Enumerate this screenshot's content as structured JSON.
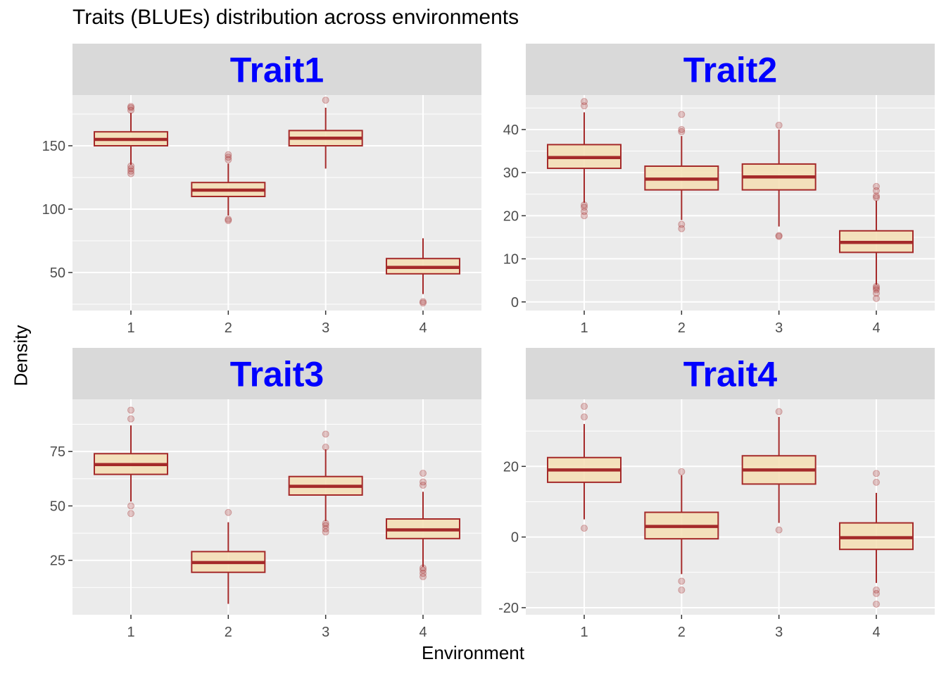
{
  "title": "Traits (BLUEs) distribution across environments",
  "xlabel": "Environment",
  "ylabel": "Density",
  "colors": {
    "panel_background": "#ebebeb",
    "strip_background": "#d9d9d9",
    "grid": "#ffffff",
    "strip_text": "#0000ff",
    "box_fill": "#f5deb3",
    "box_line": "#a52a2a",
    "tick_text": "#4d4d4d"
  },
  "chart_data": [
    {
      "type": "boxplot",
      "facet": "Trait1",
      "categories": [
        "1",
        "2",
        "3",
        "4"
      ],
      "ylim": [
        20,
        190
      ],
      "yticks": [
        50,
        100,
        150
      ],
      "boxes": [
        {
          "x": "1",
          "lower_whisker": 135,
          "q1": 150,
          "median": 155,
          "q3": 161,
          "upper_whisker": 176,
          "outliers": [
            128,
            130,
            132,
            134,
            178,
            180,
            181
          ]
        },
        {
          "x": "2",
          "lower_whisker": 95,
          "q1": 110,
          "median": 115,
          "q3": 121,
          "upper_whisker": 136,
          "outliers": [
            91,
            92,
            139,
            141,
            143
          ]
        },
        {
          "x": "3",
          "lower_whisker": 132,
          "q1": 150,
          "median": 156,
          "q3": 162,
          "upper_whisker": 180,
          "outliers": [
            186
          ]
        },
        {
          "x": "4",
          "lower_whisker": 33,
          "q1": 49,
          "median": 54,
          "q3": 61,
          "upper_whisker": 77,
          "outliers": [
            26,
            27
          ]
        }
      ]
    },
    {
      "type": "boxplot",
      "facet": "Trait2",
      "categories": [
        "1",
        "2",
        "3",
        "4"
      ],
      "ylim": [
        -2,
        48
      ],
      "yticks": [
        0,
        10,
        20,
        30,
        40
      ],
      "boxes": [
        {
          "x": "1",
          "lower_whisker": 23,
          "q1": 31,
          "median": 33.5,
          "q3": 36.5,
          "upper_whisker": 44,
          "outliers": [
            20,
            21,
            22,
            22.5,
            45.5,
            46.5
          ]
        },
        {
          "x": "2",
          "lower_whisker": 19,
          "q1": 26,
          "median": 28.5,
          "q3": 31.5,
          "upper_whisker": 38.5,
          "outliers": [
            17,
            18,
            39.5,
            40,
            43.5
          ]
        },
        {
          "x": "3",
          "lower_whisker": 17.5,
          "q1": 26,
          "median": 29,
          "q3": 32,
          "upper_whisker": 40,
          "outliers": [
            15.2,
            15.4,
            41
          ]
        },
        {
          "x": "4",
          "lower_whisker": 4,
          "q1": 11.5,
          "median": 13.8,
          "q3": 16.5,
          "upper_whisker": 23.5,
          "outliers": [
            0.8,
            2,
            2.8,
            3.2,
            3.6,
            24.2,
            24.6,
            25.8,
            26.8
          ]
        }
      ]
    },
    {
      "type": "boxplot",
      "facet": "Trait3",
      "categories": [
        "1",
        "2",
        "3",
        "4"
      ],
      "ylim": [
        0,
        99
      ],
      "yticks": [
        25,
        50,
        75
      ],
      "boxes": [
        {
          "x": "1",
          "lower_whisker": 52,
          "q1": 64.5,
          "median": 69,
          "q3": 74,
          "upper_whisker": 87,
          "outliers": [
            46.5,
            50,
            90,
            94
          ]
        },
        {
          "x": "2",
          "lower_whisker": 5,
          "q1": 19.5,
          "median": 24,
          "q3": 29,
          "upper_whisker": 42.5,
          "outliers": [
            47
          ]
        },
        {
          "x": "3",
          "lower_whisker": 43,
          "q1": 55,
          "median": 59,
          "q3": 63.5,
          "upper_whisker": 76,
          "outliers": [
            38,
            39.5,
            41,
            42,
            77,
            83
          ]
        },
        {
          "x": "4",
          "lower_whisker": 22,
          "q1": 35,
          "median": 39,
          "q3": 44,
          "upper_whisker": 56.5,
          "outliers": [
            17.5,
            19,
            20.5,
            21.5,
            59.5,
            61,
            65
          ]
        }
      ]
    },
    {
      "type": "boxplot",
      "facet": "Trait4",
      "categories": [
        "1",
        "2",
        "3",
        "4"
      ],
      "ylim": [
        -22,
        39
      ],
      "yticks": [
        -20,
        0,
        20
      ],
      "boxes": [
        {
          "x": "1",
          "lower_whisker": 5,
          "q1": 15.5,
          "median": 19,
          "q3": 22.5,
          "upper_whisker": 32,
          "outliers": [
            2.5,
            34,
            37
          ]
        },
        {
          "x": "2",
          "lower_whisker": -10.5,
          "q1": -0.5,
          "median": 3,
          "q3": 7,
          "upper_whisker": 17.5,
          "outliers": [
            -15,
            -12.5,
            18.5
          ]
        },
        {
          "x": "3",
          "lower_whisker": 4,
          "q1": 15,
          "median": 19,
          "q3": 23,
          "upper_whisker": 34,
          "outliers": [
            2,
            35.5
          ]
        },
        {
          "x": "4",
          "lower_whisker": -13,
          "q1": -3.5,
          "median": -0.2,
          "q3": 4,
          "upper_whisker": 12.5,
          "outliers": [
            -19,
            -16,
            -15,
            15.5,
            18
          ]
        }
      ]
    }
  ]
}
